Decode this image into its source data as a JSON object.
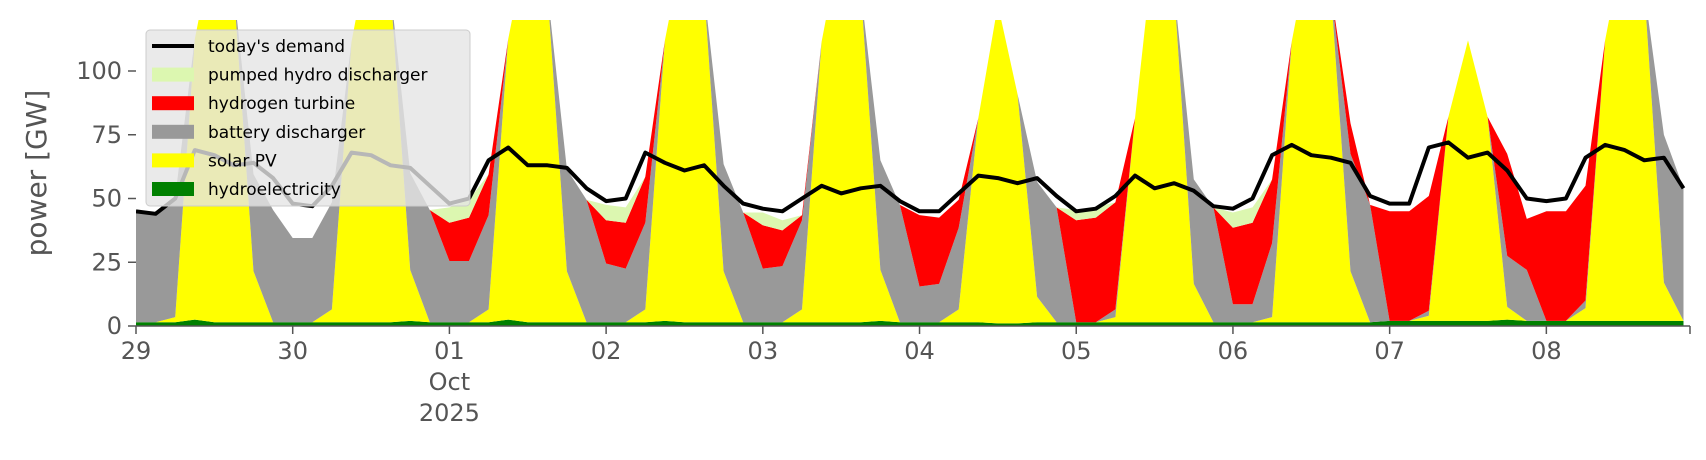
{
  "chart_data": {
    "type": "area",
    "ylabel": "power [GW]",
    "ylim": [
      0,
      120
    ],
    "yticks": [
      "0",
      "25",
      "50",
      "75",
      "100"
    ],
    "ytick_values": [
      0,
      25,
      50,
      75,
      100
    ],
    "xlim": [
      "2025-09-29T00:00",
      "2025-10-08T22:00"
    ],
    "xticks": [
      {
        "value": "2025-09-29",
        "label": "29"
      },
      {
        "value": "2025-09-30",
        "label": "30"
      },
      {
        "value": "2025-10-01",
        "label": "01",
        "sub1": "Oct",
        "sub2": "2025"
      },
      {
        "value": "2025-10-02",
        "label": "02"
      },
      {
        "value": "2025-10-03",
        "label": "03"
      },
      {
        "value": "2025-10-04",
        "label": "04"
      },
      {
        "value": "2025-10-05",
        "label": "05"
      },
      {
        "value": "2025-10-06",
        "label": "06"
      },
      {
        "value": "2025-10-07",
        "label": "07"
      },
      {
        "value": "2025-10-08",
        "label": "08"
      }
    ],
    "grid": false,
    "legend_position": "top-left",
    "legend": [
      {
        "label": "today's demand",
        "kind": "line",
        "color": "#000000"
      },
      {
        "label": "pumped hydro discharger",
        "kind": "patch",
        "color": "#dcf7b0"
      },
      {
        "label": "hydrogen turbine",
        "kind": "patch",
        "color": "#ff0000"
      },
      {
        "label": "battery discharger",
        "kind": "patch",
        "color": "#999999"
      },
      {
        "label": "solar PV",
        "kind": "patch",
        "color": "#ffff00"
      },
      {
        "label": "hydroelectricity",
        "kind": "patch",
        "color": "#008000"
      }
    ],
    "colors": {
      "demand": "#000000",
      "pumped_hydro": "#dcf7b0",
      "hydrogen": "#ff0000",
      "battery": "#999999",
      "solar": "#ffff00",
      "hydro": "#008000"
    },
    "x": [
      "2025-09-29T00:00",
      "2025-09-29T03:00",
      "2025-09-29T06:00",
      "2025-09-29T09:00",
      "2025-09-29T12:00",
      "2025-09-29T15:00",
      "2025-09-29T18:00",
      "2025-09-29T21:00",
      "2025-09-30T00:00",
      "2025-09-30T03:00",
      "2025-09-30T06:00",
      "2025-09-30T09:00",
      "2025-09-30T12:00",
      "2025-09-30T15:00",
      "2025-09-30T18:00",
      "2025-09-30T21:00",
      "2025-10-01T00:00",
      "2025-10-01T03:00",
      "2025-10-01T06:00",
      "2025-10-01T09:00",
      "2025-10-01T12:00",
      "2025-10-01T15:00",
      "2025-10-01T18:00",
      "2025-10-01T21:00",
      "2025-10-02T00:00",
      "2025-10-02T03:00",
      "2025-10-02T06:00",
      "2025-10-02T09:00",
      "2025-10-02T12:00",
      "2025-10-02T15:00",
      "2025-10-02T18:00",
      "2025-10-02T21:00",
      "2025-10-03T00:00",
      "2025-10-03T03:00",
      "2025-10-03T06:00",
      "2025-10-03T09:00",
      "2025-10-03T12:00",
      "2025-10-03T15:00",
      "2025-10-03T18:00",
      "2025-10-03T21:00",
      "2025-10-04T00:00",
      "2025-10-04T03:00",
      "2025-10-04T06:00",
      "2025-10-04T09:00",
      "2025-10-04T12:00",
      "2025-10-04T15:00",
      "2025-10-04T18:00",
      "2025-10-04T21:00",
      "2025-10-05T00:00",
      "2025-10-05T03:00",
      "2025-10-05T06:00",
      "2025-10-05T09:00",
      "2025-10-05T12:00",
      "2025-10-05T15:00",
      "2025-10-05T18:00",
      "2025-10-05T21:00",
      "2025-10-06T00:00",
      "2025-10-06T03:00",
      "2025-10-06T06:00",
      "2025-10-06T09:00",
      "2025-10-06T12:00",
      "2025-10-06T15:00",
      "2025-10-06T18:00",
      "2025-10-06T21:00",
      "2025-10-07T00:00",
      "2025-10-07T03:00",
      "2025-10-07T06:00",
      "2025-10-07T09:00",
      "2025-10-07T12:00",
      "2025-10-07T15:00",
      "2025-10-07T18:00",
      "2025-10-07T21:00",
      "2025-10-08T00:00",
      "2025-10-08T03:00",
      "2025-10-08T06:00",
      "2025-10-08T09:00",
      "2025-10-08T12:00",
      "2025-10-08T15:00",
      "2025-10-08T18:00",
      "2025-10-08T21:00"
    ],
    "series": [
      {
        "name": "hydroelectricity",
        "values": [
          1.5,
          1.5,
          1.5,
          2.5,
          1.5,
          1.5,
          1.5,
          1.5,
          1.5,
          1.5,
          1.5,
          1.5,
          1.5,
          1.5,
          2,
          1.5,
          1.5,
          1.5,
          1.5,
          2.5,
          1.5,
          1.5,
          1.5,
          1.5,
          1.5,
          1.5,
          1.5,
          2,
          1.5,
          1.5,
          1.5,
          1.5,
          1.5,
          1.5,
          1.5,
          1.5,
          1.5,
          1.5,
          2,
          1.5,
          1.5,
          1.5,
          1.5,
          1.5,
          1,
          1,
          1.5,
          1.5,
          1.5,
          1.5,
          1.5,
          1.5,
          1.5,
          1.5,
          1.5,
          1.5,
          1.5,
          1.5,
          1.5,
          1.5,
          1.5,
          1.5,
          1.5,
          1.5,
          2,
          2,
          2,
          2,
          2,
          2,
          2.5,
          2,
          2,
          2,
          2,
          2,
          2,
          2,
          2,
          2
        ]
      },
      {
        "name": "solar PV",
        "values": [
          0,
          0,
          2,
          110,
          150,
          130,
          20,
          0,
          0,
          0,
          5,
          110,
          150,
          130,
          20,
          0,
          0,
          0,
          5,
          110,
          150,
          130,
          20,
          0,
          0,
          0,
          5,
          110,
          150,
          130,
          20,
          0,
          0,
          0,
          5,
          110,
          150,
          130,
          20,
          0,
          0,
          0,
          5,
          80,
          125,
          90,
          10,
          0,
          0,
          0,
          2,
          80,
          150,
          130,
          15,
          0,
          0,
          0,
          2,
          110,
          150,
          130,
          20,
          0,
          0,
          0,
          2,
          80,
          110,
          80,
          5,
          0,
          0,
          0,
          5,
          110,
          150,
          130,
          15,
          0
        ]
      },
      {
        "name": "battery discharger",
        "values": [
          44,
          43,
          47,
          0,
          0,
          0,
          38,
          44,
          33,
          33,
          42,
          0,
          0,
          0,
          38,
          44,
          24,
          24,
          37,
          0,
          0,
          0,
          40,
          48,
          23,
          21,
          34,
          0,
          0,
          0,
          42,
          43,
          21,
          22,
          35,
          0,
          0,
          0,
          43,
          46,
          14,
          15,
          32,
          0,
          0,
          0,
          45,
          45,
          0,
          0,
          3,
          0,
          0,
          0,
          41,
          45,
          7,
          7,
          29,
          0,
          0,
          0,
          46,
          46,
          0,
          0,
          2,
          0,
          0,
          0,
          20,
          20,
          0,
          0,
          3,
          0,
          0,
          0,
          58,
          52
        ]
      },
      {
        "name": "hydrogen turbine",
        "values": [
          0,
          0,
          0,
          0,
          0,
          0,
          0,
          0,
          0,
          0,
          0,
          0,
          0,
          0,
          0,
          0,
          15,
          17,
          16,
          0,
          0,
          0,
          0,
          0,
          17,
          18,
          18,
          0,
          0,
          0,
          0,
          0,
          17,
          14,
          2,
          0,
          0,
          0,
          0,
          0,
          28,
          26,
          11,
          0,
          0,
          0,
          0,
          0,
          40,
          41,
          42,
          0,
          0,
          0,
          0,
          0,
          30,
          32,
          25,
          0,
          0,
          0,
          12,
          0,
          43,
          43,
          45,
          0,
          0,
          0,
          40,
          20,
          43,
          43,
          45,
          0,
          0,
          0,
          0,
          0
        ]
      },
      {
        "name": "pumped hydro discharger",
        "values": [
          0,
          0,
          0,
          0,
          0,
          0,
          0,
          0,
          0,
          0,
          0,
          0,
          0,
          0,
          0,
          0,
          6,
          7,
          0,
          0,
          0,
          0,
          0,
          0,
          6,
          6,
          0,
          0,
          0,
          0,
          0,
          0,
          5,
          4,
          0,
          0,
          0,
          0,
          0,
          0,
          0,
          0,
          0,
          0,
          0,
          0,
          0,
          0,
          4,
          4,
          0,
          0,
          0,
          0,
          0,
          0,
          6,
          6,
          0,
          0,
          0,
          0,
          0,
          0,
          0,
          0,
          0,
          0,
          0,
          0,
          0,
          0,
          0,
          0,
          0,
          0,
          0,
          0,
          0,
          0
        ]
      },
      {
        "name": "today's demand",
        "values": [
          45,
          44,
          50,
          69,
          67,
          63,
          64,
          58,
          48,
          47,
          55,
          68,
          67,
          63,
          62,
          55,
          48,
          50,
          65,
          70,
          63,
          63,
          62,
          54,
          49,
          50,
          68,
          64,
          61,
          63,
          55,
          48,
          46,
          45,
          50,
          55,
          52,
          54,
          55,
          49,
          45,
          45,
          52,
          59,
          58,
          56,
          58,
          51,
          45,
          46,
          51,
          59,
          54,
          56,
          53,
          47,
          46,
          50,
          67,
          71,
          67,
          66,
          64,
          51,
          48,
          48,
          70,
          72,
          66,
          68,
          61,
          50,
          49,
          50,
          66,
          71,
          69,
          65,
          66,
          54
        ]
      }
    ]
  }
}
